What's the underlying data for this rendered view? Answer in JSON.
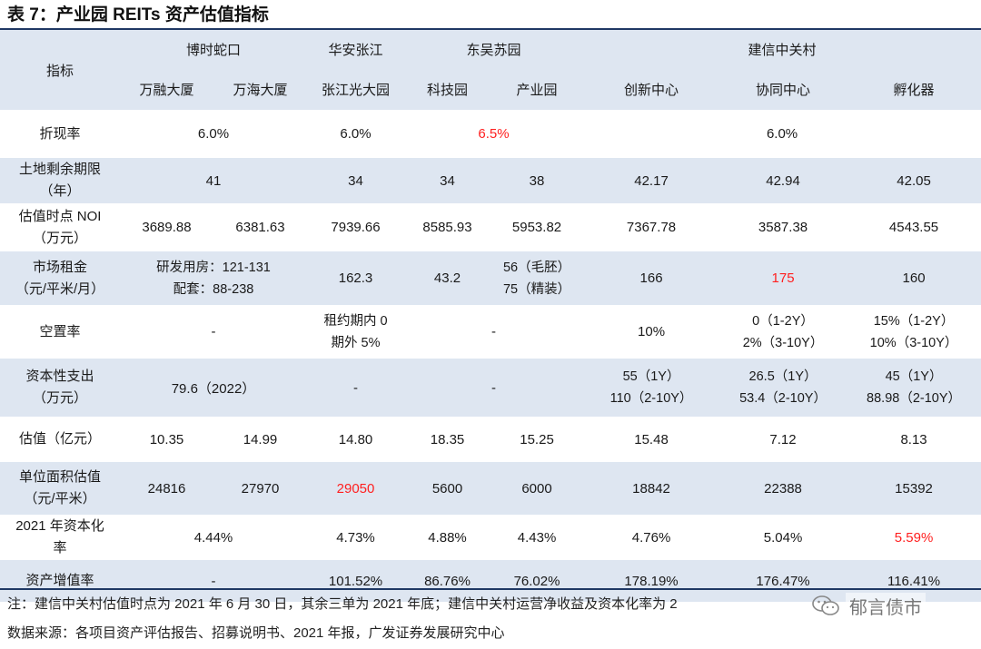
{
  "title": "表 7：产业园 REITs 资产估值指标",
  "header": {
    "indicator": "指标",
    "groups": [
      "博时蛇口",
      "华安张江",
      "东吴苏园",
      "建信中关村"
    ],
    "assets": [
      "万融大厦",
      "万海大厦",
      "张江光大园",
      "科技园",
      "产业园",
      "创新中心",
      "协同中心",
      "孵化器"
    ]
  },
  "rows": {
    "discount": {
      "label": "折现率",
      "boshi": "6.0%",
      "huaan": "6.0%",
      "dongwu": "6.5%",
      "jianxin": "6.0%"
    },
    "land": {
      "label": [
        "土地剩余期限",
        "（年）"
      ],
      "boshi": "41",
      "huaan": "34",
      "keji": "34",
      "chanye": "38",
      "chuangxin": "42.17",
      "xietong": "42.94",
      "fuhuaqi": "42.05"
    },
    "noi": {
      "label": [
        "估值时点 NOI",
        "（万元）"
      ],
      "wanrong": "3689.88",
      "wanhai": "6381.63",
      "huaan": "7939.66",
      "keji": "8585.93",
      "chanye": "5953.82",
      "chuangxin": "7367.78",
      "xietong": "3587.38",
      "fuhuaqi": "4543.55"
    },
    "rent": {
      "label": [
        "市场租金",
        "（元/平米/月）"
      ],
      "boshi": [
        "研发用房：121-131",
        "配套：88-238"
      ],
      "huaan": "162.3",
      "keji": "43.2",
      "chanye": [
        "56（毛胚）",
        "75（精装）"
      ],
      "chuangxin": "166",
      "xietong": "175",
      "fuhuaqi": "160"
    },
    "vacancy": {
      "label": "空置率",
      "boshi": "-",
      "huaan": [
        "租约期内 0",
        "期外 5%"
      ],
      "dongwu": "-",
      "chuangxin": "10%",
      "xietong": [
        "0（1-2Y）",
        "2%（3-10Y）"
      ],
      "fuhuaqi": [
        "15%（1-2Y）",
        "10%（3-10Y）"
      ]
    },
    "capex": {
      "label": [
        "资本性支出",
        "（万元）"
      ],
      "boshi": "79.6（2022）",
      "huaan": "-",
      "dongwu": "-",
      "chuangxin": [
        "55（1Y）",
        "110（2-10Y）"
      ],
      "xietong": [
        "26.5（1Y）",
        "53.4（2-10Y）"
      ],
      "fuhuaqi": [
        "45（1Y）",
        "88.98（2-10Y）"
      ]
    },
    "valuation": {
      "label": "估值（亿元）",
      "wanrong": "10.35",
      "wanhai": "14.99",
      "huaan": "14.80",
      "keji": "18.35",
      "chanye": "15.25",
      "chuangxin": "15.48",
      "xietong": "7.12",
      "fuhuaqi": "8.13"
    },
    "unit": {
      "label": [
        "单位面积估值",
        "（元/平米）"
      ],
      "wanrong": "24816",
      "wanhai": "27970",
      "huaan": "29050",
      "keji": "5600",
      "chanye": "6000",
      "chuangxin": "18842",
      "xietong": "22388",
      "fuhuaqi": "15392"
    },
    "cap": {
      "label": [
        "2021 年资本化",
        "率"
      ],
      "boshi": "4.44%",
      "huaan": "4.73%",
      "keji": "4.88%",
      "chanye": "4.43%",
      "chuangxin": "4.76%",
      "xietong": "5.04%",
      "fuhuaqi": "5.59%"
    },
    "appreciation": {
      "label": "资产增值率",
      "boshi": "-",
      "huaan": "101.52%",
      "keji": "86.76%",
      "chanye": "76.02%",
      "chuangxin": "178.19%",
      "xietong": "176.47%",
      "fuhuaqi": "116.41%"
    }
  },
  "notes": {
    "note": "注：建信中关村估值时点为 2021 年 6 月 30 日，其余三单为 2021 年底；建信中关村运营净收益及资本化率为 2",
    "source": "数据来源：各项目资产评估报告、招募说明书、2021 年报，广发证券发展研究中心"
  },
  "watermark": {
    "icon": "wechat-icon",
    "text": "郁言债市"
  },
  "colors": {
    "header_bg": "#dee6f1",
    "rule": "#1f3864",
    "highlight": "#ff2020"
  }
}
